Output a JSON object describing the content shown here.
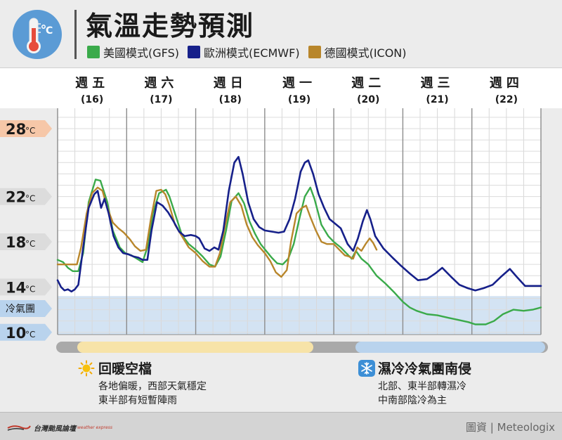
{
  "header": {
    "title": "氣溫走勢預測",
    "icon": "thermometer-celsius-icon",
    "icon_bg": "#5b9bd5"
  },
  "legend": [
    {
      "label": "美國模式(GFS)",
      "color": "#3aaa4a"
    },
    {
      "label": "歐洲模式(ECMWF)",
      "color": "#16208a"
    },
    {
      "label": "德國模式(ICON)",
      "color": "#b8862b"
    }
  ],
  "chart_data": {
    "type": "line",
    "days": [
      {
        "label": "週五",
        "date": "(16)"
      },
      {
        "label": "週六",
        "date": "(17)"
      },
      {
        "label": "週日",
        "date": "(18)"
      },
      {
        "label": "週一",
        "date": "(19)"
      },
      {
        "label": "週二",
        "date": "(20)"
      },
      {
        "label": "週三",
        "date": "(21)"
      },
      {
        "label": "週四",
        "date": "(22)"
      }
    ],
    "y_ticks": [
      {
        "value": 28,
        "text": "28",
        "unit": "°C",
        "style": "warm"
      },
      {
        "value": 22,
        "text": "22",
        "unit": "°C",
        "style": "neutral"
      },
      {
        "value": 18,
        "text": "18",
        "unit": "°C",
        "style": "neutral"
      },
      {
        "value": 14,
        "text": "14",
        "unit": "°C",
        "style": "neutral"
      },
      {
        "value": 12.1,
        "text": "冷氣團",
        "unit": "",
        "style": "cold"
      },
      {
        "value": 10,
        "text": "10",
        "unit": "°C",
        "style": "cold"
      }
    ],
    "ylim": [
      9.8,
      29.8
    ],
    "xlim": [
      0,
      7
    ],
    "cold_air_threshold": 13.2,
    "grid": true,
    "series": [
      {
        "name": "美國模式(GFS)",
        "color": "#3aaa4a",
        "points": [
          [
            0.0,
            16.4
          ],
          [
            0.08,
            16.2
          ],
          [
            0.15,
            15.7
          ],
          [
            0.22,
            15.4
          ],
          [
            0.3,
            15.4
          ],
          [
            0.37,
            17.0
          ],
          [
            0.45,
            21.5
          ],
          [
            0.55,
            23.5
          ],
          [
            0.62,
            23.4
          ],
          [
            0.72,
            21.5
          ],
          [
            0.8,
            19.0
          ],
          [
            0.9,
            17.5
          ],
          [
            0.98,
            17.0
          ],
          [
            1.07,
            16.8
          ],
          [
            1.15,
            16.5
          ],
          [
            1.23,
            16.2
          ],
          [
            1.3,
            17.5
          ],
          [
            1.38,
            20.5
          ],
          [
            1.47,
            22.3
          ],
          [
            1.57,
            22.6
          ],
          [
            1.62,
            22.0
          ],
          [
            1.7,
            20.5
          ],
          [
            1.8,
            18.6
          ],
          [
            1.9,
            17.8
          ],
          [
            2.0,
            17.3
          ],
          [
            2.1,
            16.7
          ],
          [
            2.2,
            16.0
          ],
          [
            2.28,
            15.8
          ],
          [
            2.36,
            16.7
          ],
          [
            2.44,
            19.0
          ],
          [
            2.52,
            21.6
          ],
          [
            2.62,
            22.3
          ],
          [
            2.7,
            21.4
          ],
          [
            2.78,
            19.8
          ],
          [
            2.86,
            18.7
          ],
          [
            2.94,
            17.8
          ],
          [
            3.02,
            17.2
          ],
          [
            3.1,
            16.6
          ],
          [
            3.18,
            16.1
          ],
          [
            3.26,
            16.0
          ],
          [
            3.34,
            16.5
          ],
          [
            3.42,
            17.8
          ],
          [
            3.5,
            20.0
          ],
          [
            3.58,
            22.0
          ],
          [
            3.66,
            22.8
          ],
          [
            3.72,
            21.8
          ],
          [
            3.82,
            19.5
          ],
          [
            3.92,
            18.5
          ],
          [
            4.0,
            18.0
          ],
          [
            4.1,
            17.5
          ],
          [
            4.18,
            17.0
          ],
          [
            4.26,
            16.5
          ],
          [
            4.32,
            17.2
          ],
          [
            4.4,
            16.5
          ],
          [
            4.5,
            16.0
          ],
          [
            4.62,
            15.0
          ],
          [
            4.75,
            14.3
          ],
          [
            4.88,
            13.5
          ],
          [
            5.0,
            12.7
          ],
          [
            5.1,
            12.2
          ],
          [
            5.2,
            11.9
          ],
          [
            5.35,
            11.6
          ],
          [
            5.5,
            11.5
          ],
          [
            5.65,
            11.3
          ],
          [
            5.8,
            11.1
          ],
          [
            5.95,
            10.9
          ],
          [
            6.05,
            10.7
          ],
          [
            6.2,
            10.7
          ],
          [
            6.32,
            11.0
          ],
          [
            6.45,
            11.6
          ],
          [
            6.6,
            12.0
          ],
          [
            6.75,
            11.9
          ],
          [
            6.88,
            12.0
          ],
          [
            7.0,
            12.2
          ]
        ]
      },
      {
        "name": "歐洲模式(ECMWF)",
        "color": "#16208a",
        "points": [
          [
            0.0,
            14.6
          ],
          [
            0.05,
            14.0
          ],
          [
            0.1,
            13.7
          ],
          [
            0.15,
            13.8
          ],
          [
            0.2,
            13.6
          ],
          [
            0.25,
            13.8
          ],
          [
            0.3,
            14.2
          ],
          [
            0.37,
            17.5
          ],
          [
            0.45,
            21.0
          ],
          [
            0.53,
            22.2
          ],
          [
            0.58,
            22.5
          ],
          [
            0.63,
            21.0
          ],
          [
            0.68,
            21.8
          ],
          [
            0.74,
            20.5
          ],
          [
            0.81,
            18.5
          ],
          [
            0.88,
            17.5
          ],
          [
            0.95,
            17.0
          ],
          [
            1.02,
            16.9
          ],
          [
            1.1,
            16.7
          ],
          [
            1.17,
            16.6
          ],
          [
            1.23,
            16.4
          ],
          [
            1.3,
            16.4
          ],
          [
            1.36,
            19.0
          ],
          [
            1.44,
            21.5
          ],
          [
            1.52,
            21.2
          ],
          [
            1.6,
            20.6
          ],
          [
            1.68,
            19.8
          ],
          [
            1.76,
            18.9
          ],
          [
            1.84,
            18.5
          ],
          [
            1.93,
            18.6
          ],
          [
            2.0,
            18.5
          ],
          [
            2.05,
            18.3
          ],
          [
            2.13,
            17.4
          ],
          [
            2.2,
            17.2
          ],
          [
            2.27,
            17.5
          ],
          [
            2.33,
            17.3
          ],
          [
            2.4,
            19.0
          ],
          [
            2.48,
            22.5
          ],
          [
            2.56,
            25.0
          ],
          [
            2.62,
            25.5
          ],
          [
            2.68,
            24.0
          ],
          [
            2.76,
            21.5
          ],
          [
            2.84,
            20.0
          ],
          [
            2.92,
            19.3
          ],
          [
            3.0,
            19.0
          ],
          [
            3.1,
            18.9
          ],
          [
            3.2,
            18.8
          ],
          [
            3.28,
            18.9
          ],
          [
            3.36,
            20.0
          ],
          [
            3.44,
            21.8
          ],
          [
            3.52,
            24.2
          ],
          [
            3.58,
            25.0
          ],
          [
            3.63,
            25.2
          ],
          [
            3.7,
            24.0
          ],
          [
            3.78,
            22.2
          ],
          [
            3.86,
            21.0
          ],
          [
            3.94,
            20.0
          ],
          [
            4.02,
            19.6
          ],
          [
            4.1,
            19.2
          ],
          [
            4.2,
            17.8
          ],
          [
            4.28,
            17.2
          ],
          [
            4.35,
            18.3
          ],
          [
            4.42,
            19.8
          ],
          [
            4.48,
            20.8
          ],
          [
            4.53,
            20.0
          ],
          [
            4.6,
            18.5
          ],
          [
            4.72,
            17.4
          ],
          [
            4.85,
            16.6
          ],
          [
            4.97,
            15.9
          ],
          [
            5.1,
            15.2
          ],
          [
            5.22,
            14.6
          ],
          [
            5.35,
            14.7
          ],
          [
            5.47,
            15.2
          ],
          [
            5.57,
            15.7
          ],
          [
            5.7,
            14.9
          ],
          [
            5.82,
            14.2
          ],
          [
            5.94,
            13.9
          ],
          [
            6.05,
            13.7
          ],
          [
            6.17,
            13.9
          ],
          [
            6.3,
            14.2
          ],
          [
            6.42,
            14.9
          ],
          [
            6.55,
            15.6
          ],
          [
            6.65,
            14.9
          ],
          [
            6.77,
            14.1
          ],
          [
            6.88,
            14.1
          ],
          [
            7.0,
            14.1
          ]
        ]
      },
      {
        "name": "德國模式(ICON)",
        "color": "#b8862b",
        "points": [
          [
            0.0,
            16.0
          ],
          [
            0.1,
            16.0
          ],
          [
            0.2,
            16.0
          ],
          [
            0.28,
            16.0
          ],
          [
            0.34,
            17.5
          ],
          [
            0.42,
            20.5
          ],
          [
            0.5,
            22.3
          ],
          [
            0.58,
            22.8
          ],
          [
            0.65,
            22.5
          ],
          [
            0.72,
            21.0
          ],
          [
            0.8,
            19.7
          ],
          [
            0.88,
            19.2
          ],
          [
            0.96,
            18.8
          ],
          [
            1.05,
            18.2
          ],
          [
            1.12,
            17.6
          ],
          [
            1.2,
            17.2
          ],
          [
            1.28,
            17.3
          ],
          [
            1.35,
            20.0
          ],
          [
            1.43,
            22.5
          ],
          [
            1.5,
            22.6
          ],
          [
            1.56,
            22.2
          ],
          [
            1.62,
            21.2
          ],
          [
            1.7,
            19.5
          ],
          [
            1.8,
            18.5
          ],
          [
            1.9,
            17.5
          ],
          [
            2.0,
            17.0
          ],
          [
            2.1,
            16.3
          ],
          [
            2.2,
            15.8
          ],
          [
            2.28,
            15.8
          ],
          [
            2.35,
            17.0
          ],
          [
            2.43,
            19.5
          ],
          [
            2.5,
            21.5
          ],
          [
            2.58,
            22.0
          ],
          [
            2.66,
            21.2
          ],
          [
            2.74,
            19.5
          ],
          [
            2.82,
            18.4
          ],
          [
            2.9,
            17.7
          ],
          [
            3.0,
            17.0
          ],
          [
            3.08,
            16.3
          ],
          [
            3.16,
            15.3
          ],
          [
            3.24,
            14.9
          ],
          [
            3.32,
            15.5
          ],
          [
            3.38,
            18.0
          ],
          [
            3.46,
            20.5
          ],
          [
            3.54,
            21.0
          ],
          [
            3.6,
            21.2
          ],
          [
            3.66,
            20.2
          ],
          [
            3.74,
            19.0
          ],
          [
            3.82,
            18.0
          ],
          [
            3.9,
            17.8
          ],
          [
            4.0,
            17.8
          ],
          [
            4.08,
            17.3
          ],
          [
            4.16,
            16.8
          ],
          [
            4.22,
            16.7
          ],
          [
            4.28,
            16.5
          ],
          [
            4.34,
            17.5
          ],
          [
            4.4,
            17.2
          ],
          [
            4.46,
            17.8
          ],
          [
            4.52,
            18.3
          ],
          [
            4.57,
            17.9
          ],
          [
            4.62,
            17.3
          ]
        ]
      }
    ]
  },
  "phases": [
    {
      "title": "回暖空檔",
      "icon": "sun-icon",
      "lines": [
        "各地偏暖，西部天氣穩定",
        "東半部有短暫陣雨"
      ],
      "bar_color": "#f7e3a8"
    },
    {
      "title": "濕冷冷氣團南侵",
      "icon": "snowflake-icon",
      "lines": [
        "北部、東半部轉濕冷",
        "中南部陰冷為主"
      ],
      "bar_color": "#b9d3ed"
    }
  ],
  "footer": {
    "logo_text": "台灣颱風論壇",
    "logo_sub": "weather express",
    "credit": "圖資 | Meteologix"
  }
}
